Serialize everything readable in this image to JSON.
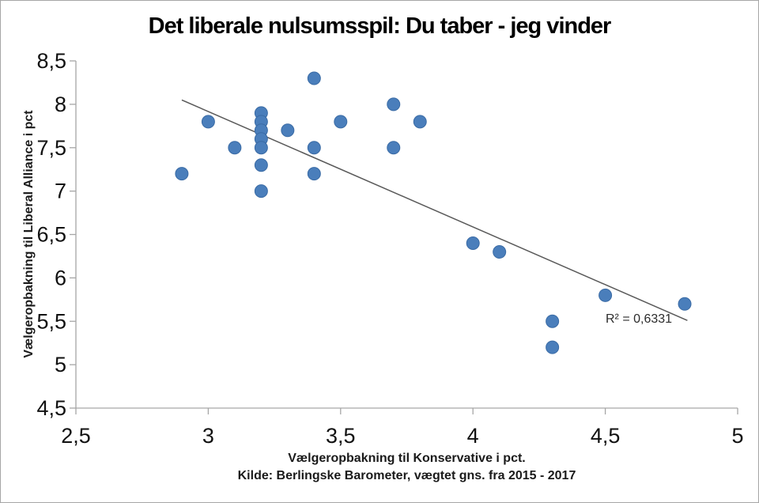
{
  "chart_data": {
    "type": "scatter",
    "title": "Det liberale nulsumsspil: Du taber - jeg vinder",
    "xlabel": "Vælgeropbakning til Konservative i pct.",
    "source_note": "Kilde: Berlingske Barometer, vægtet gns. fra 2015 - 2017",
    "ylabel": "Vælgeropbakning til Liberal Alliance i pct",
    "xlim": [
      2.5,
      5
    ],
    "ylim": [
      4.5,
      8.5
    ],
    "grid": false,
    "legend": false,
    "x_ticks": [
      {
        "value": 2.5,
        "label": "2,5"
      },
      {
        "value": 3,
        "label": "3"
      },
      {
        "value": 3.5,
        "label": "3,5"
      },
      {
        "value": 4,
        "label": "4"
      },
      {
        "value": 4.5,
        "label": "4,5"
      },
      {
        "value": 5,
        "label": "5"
      }
    ],
    "y_ticks": [
      {
        "value": 8.5,
        "label": "8,5"
      },
      {
        "value": 8,
        "label": "8"
      },
      {
        "value": 7.5,
        "label": "7,5"
      },
      {
        "value": 7,
        "label": "7"
      },
      {
        "value": 6.5,
        "label": "6,5"
      },
      {
        "value": 6,
        "label": "6"
      },
      {
        "value": 5.5,
        "label": "5,5"
      },
      {
        "value": 5,
        "label": "5"
      },
      {
        "value": 4.5,
        "label": "4,5"
      }
    ],
    "points": [
      [
        2.9,
        7.2
      ],
      [
        3.0,
        7.8
      ],
      [
        3.1,
        7.5
      ],
      [
        3.2,
        7.9
      ],
      [
        3.2,
        7.8
      ],
      [
        3.2,
        7.7
      ],
      [
        3.2,
        7.6
      ],
      [
        3.2,
        7.5
      ],
      [
        3.2,
        7.3
      ],
      [
        3.2,
        7.0
      ],
      [
        3.3,
        7.7
      ],
      [
        3.4,
        8.3
      ],
      [
        3.4,
        7.5
      ],
      [
        3.4,
        7.2
      ],
      [
        3.5,
        7.8
      ],
      [
        3.7,
        8.0
      ],
      [
        3.7,
        7.5
      ],
      [
        3.8,
        7.8
      ],
      [
        4.0,
        6.4
      ],
      [
        4.1,
        6.3
      ],
      [
        4.3,
        5.5
      ],
      [
        4.3,
        5.2
      ],
      [
        4.5,
        5.8
      ],
      [
        4.8,
        5.7
      ]
    ],
    "trendline": {
      "x1": 2.9,
      "y1": 8.05,
      "x2": 4.81,
      "y2": 5.51,
      "label": "R² = 0,6331",
      "r_squared": 0.6331
    },
    "colors": {
      "marker": "#4A7EBB",
      "marker_border": "#3A6BA5",
      "trendline": "#595959",
      "axis": "#A6A6A6",
      "text": "#111111"
    }
  }
}
